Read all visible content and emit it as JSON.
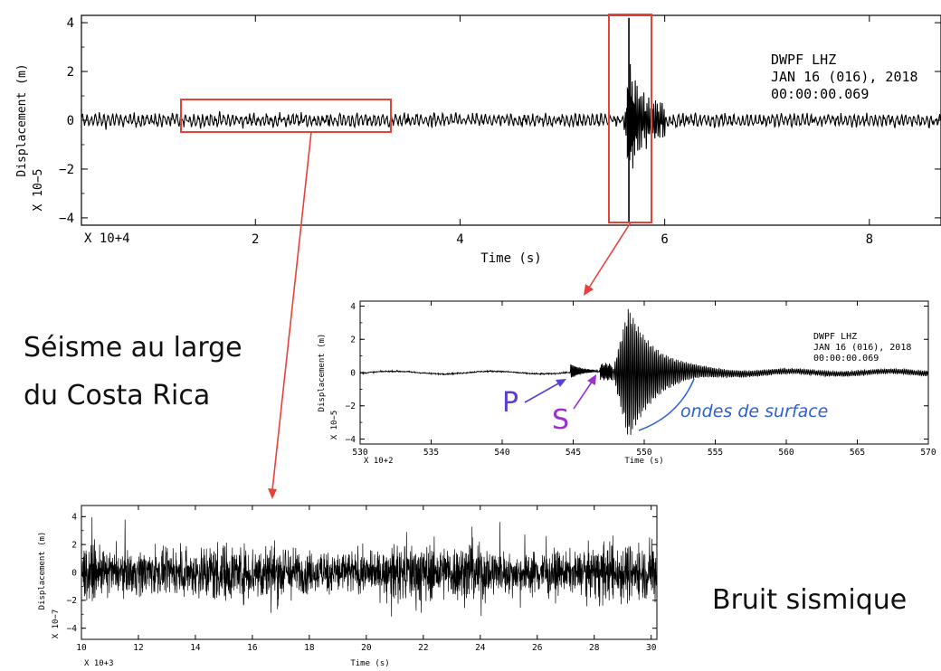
{
  "chart_data": [
    {
      "type": "line",
      "ylabel": "Displacement (m)",
      "y_multiplier": "X 10−5",
      "xlabel": "Time (s)",
      "x_multiplier": "X 10+4",
      "xlim": [
        0.3,
        8.7
      ],
      "ylim": [
        -4.3,
        4.3
      ],
      "x_ticks": [
        2,
        4,
        6,
        8
      ],
      "y_ticks": [
        -4,
        -2,
        0,
        2,
        4
      ],
      "header": [
        "DWPF  LHZ",
        "JAN 16 (016), 2018",
        "00:00:00.069"
      ],
      "series": [
        {
          "description": "background noise, amplitude about ±0.3",
          "x_range": [
            0.3,
            8.7
          ],
          "amplitude": 0.3
        },
        {
          "description": "earthquake signal peak",
          "x": 5.65,
          "y_min": -4.2,
          "y_max": 4.2
        }
      ],
      "highlight_boxes": [
        {
          "x_range": [
            1.1,
            3.2
          ],
          "y_range": [
            -0.6,
            0.6
          ]
        },
        {
          "x_range": [
            5.35,
            5.8
          ],
          "y_range": [
            -4.3,
            4.3
          ]
        }
      ]
    },
    {
      "type": "line",
      "ylabel": "Displacement (m)",
      "y_multiplier": "X 10−5",
      "xlabel": "Time (s)",
      "x_multiplier": "X 10+2",
      "xlim": [
        530,
        570
      ],
      "ylim": [
        -4.3,
        4.3
      ],
      "x_ticks": [
        530,
        535,
        540,
        545,
        550,
        555,
        560,
        565,
        570
      ],
      "y_ticks": [
        -4,
        -2,
        0,
        2,
        4
      ],
      "header": [
        "DWPF  LHZ",
        "JAN 16 (016), 2018",
        "00:00:00.069"
      ],
      "series": [
        {
          "description": "seismogram",
          "key_points": [
            {
              "x": 530,
              "y": 0.0
            },
            {
              "x": 544.8,
              "y": 0.0
            },
            {
              "x": 545.2,
              "y": 0.8
            },
            {
              "x": 547.0,
              "y": 0.5
            },
            {
              "x": 548.9,
              "y": 3.8
            },
            {
              "x": 549.1,
              "y": -3.8
            },
            {
              "x": 552,
              "y": 0.8
            },
            {
              "x": 560,
              "y": 0.1
            },
            {
              "x": 570,
              "y": 0.0
            }
          ]
        }
      ],
      "annotations": [
        {
          "text": "P",
          "x": 545.0,
          "color": "#5b3fd1"
        },
        {
          "text": "S",
          "x": 546.8,
          "color": "#9b2fd0"
        },
        {
          "text": "ondes de surface",
          "x": 552.0,
          "color": "#2b5fd9"
        }
      ]
    },
    {
      "type": "line",
      "ylabel": "Displacement (m)",
      "y_multiplier": "X 10−7",
      "xlabel": "Time (s)",
      "x_multiplier": "X 10+3",
      "xlim": [
        10,
        30.2
      ],
      "ylim": [
        -4.8,
        4.8
      ],
      "x_ticks": [
        10,
        12,
        14,
        16,
        18,
        20,
        22,
        24,
        26,
        28,
        30
      ],
      "y_ticks": [
        -4,
        -2,
        0,
        2,
        4
      ],
      "series": [
        {
          "description": "dense seismic noise",
          "x_range": [
            10,
            30.2
          ],
          "amplitude": 3.2
        }
      ]
    }
  ],
  "labels": {
    "earthquake_caption_line1": "Séisme au large",
    "earthquake_caption_line2": "du Costa Rica",
    "noise_caption": "Bruit sismique"
  },
  "colors": {
    "highlight": "#e8413a",
    "trace": "#000000",
    "p_wave": "#5b3fd1",
    "s_wave": "#9b2fd0",
    "surface_wave": "#2b5fd9"
  }
}
